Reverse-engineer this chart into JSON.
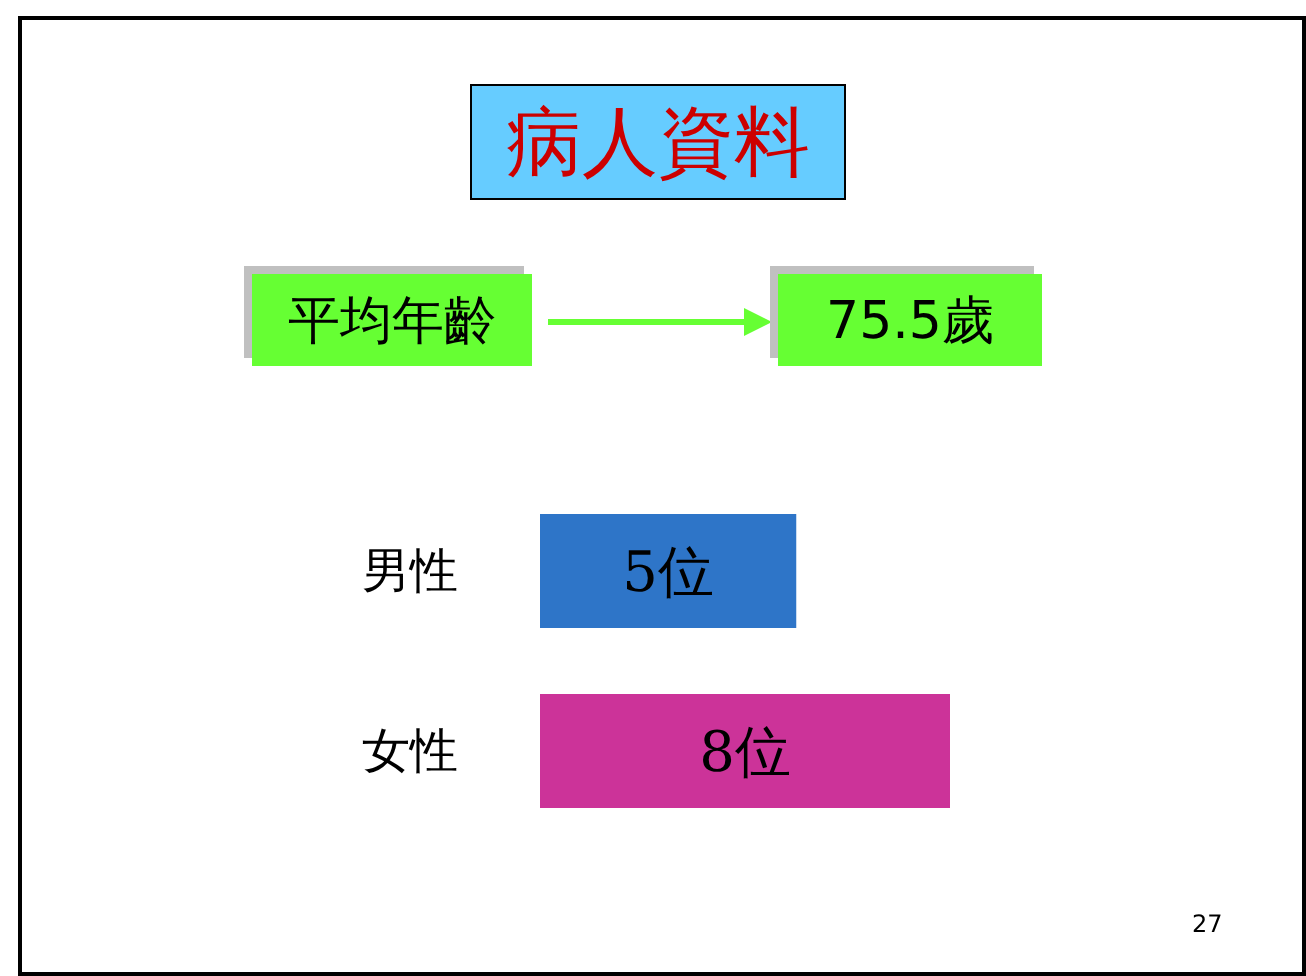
{
  "chart_data": {
    "type": "bar",
    "orientation": "horizontal",
    "title": "病人資料",
    "categories": [
      "男性",
      "女性"
    ],
    "values": [
      5,
      8
    ],
    "colors": [
      "#2e75c8",
      "#cc3399"
    ],
    "value_labels": [
      "5位",
      "8位"
    ],
    "annotations": [
      "平均年齡",
      "75.5歲",
      "27"
    ]
  }
}
